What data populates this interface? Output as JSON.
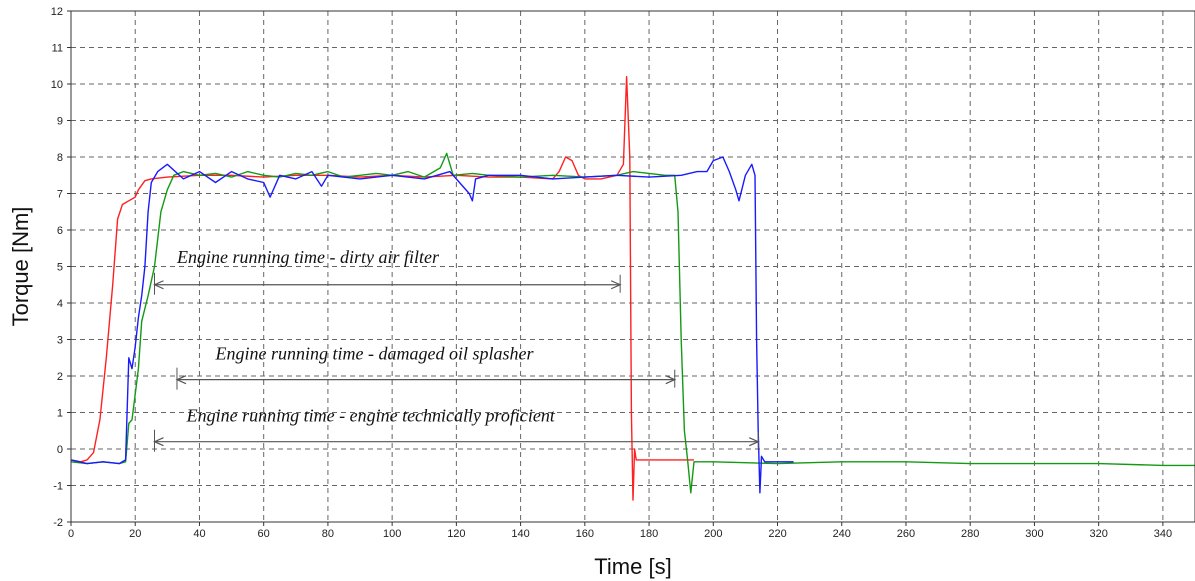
{
  "chart_data": {
    "type": "line",
    "xlabel": "Time [s]",
    "ylabel": "Torque [Nm]",
    "xlim": [
      0,
      350
    ],
    "ylim": [
      -2,
      12
    ],
    "xticks": [
      0,
      20,
      40,
      60,
      80,
      100,
      120,
      140,
      160,
      180,
      200,
      220,
      240,
      260,
      280,
      300,
      320,
      340
    ],
    "yticks": [
      -2,
      -1,
      0,
      1,
      2,
      3,
      4,
      5,
      6,
      7,
      8,
      9,
      10,
      11,
      12
    ],
    "grid": true,
    "colors": {
      "red": "#ff2020",
      "green": "#139a13",
      "blue": "#1a1aff"
    },
    "series": [
      {
        "color": "#ff2020",
        "points": [
          [
            0,
            -0.3
          ],
          [
            3,
            -0.35
          ],
          [
            5,
            -0.3
          ],
          [
            7,
            -0.1
          ],
          [
            9,
            0.8
          ],
          [
            11,
            2.5
          ],
          [
            13,
            4.5
          ],
          [
            14.5,
            6.3
          ],
          [
            16,
            6.7
          ],
          [
            18,
            6.8
          ],
          [
            20,
            6.9
          ],
          [
            21,
            7.1
          ],
          [
            23,
            7.35
          ],
          [
            25,
            7.4
          ],
          [
            30,
            7.45
          ],
          [
            40,
            7.5
          ],
          [
            50,
            7.5
          ],
          [
            60,
            7.45
          ],
          [
            70,
            7.5
          ],
          [
            80,
            7.5
          ],
          [
            90,
            7.45
          ],
          [
            100,
            7.5
          ],
          [
            110,
            7.45
          ],
          [
            120,
            7.5
          ],
          [
            130,
            7.45
          ],
          [
            140,
            7.45
          ],
          [
            150,
            7.4
          ],
          [
            152,
            7.6
          ],
          [
            154,
            8.0
          ],
          [
            156,
            7.9
          ],
          [
            158,
            7.5
          ],
          [
            160,
            7.4
          ],
          [
            165,
            7.4
          ],
          [
            170,
            7.5
          ],
          [
            172,
            7.8
          ],
          [
            173,
            10.2
          ],
          [
            174,
            8.0
          ],
          [
            174.5,
            1.0
          ],
          [
            175,
            -1.4
          ],
          [
            175.5,
            0
          ],
          [
            176,
            -0.3
          ],
          [
            180,
            -0.3
          ],
          [
            190,
            -0.3
          ],
          [
            194,
            -0.3
          ]
        ]
      },
      {
        "color": "#139a13",
        "points": [
          [
            0,
            -0.35
          ],
          [
            5,
            -0.4
          ],
          [
            10,
            -0.35
          ],
          [
            15,
            -0.4
          ],
          [
            17,
            -0.35
          ],
          [
            18,
            0.7
          ],
          [
            19,
            0.8
          ],
          [
            20,
            1.5
          ],
          [
            21,
            2.2
          ],
          [
            22,
            3.5
          ],
          [
            24,
            4.2
          ],
          [
            26,
            5.0
          ],
          [
            28,
            6.5
          ],
          [
            30,
            7.1
          ],
          [
            32,
            7.5
          ],
          [
            35,
            7.6
          ],
          [
            40,
            7.5
          ],
          [
            45,
            7.55
          ],
          [
            50,
            7.45
          ],
          [
            55,
            7.6
          ],
          [
            60,
            7.5
          ],
          [
            65,
            7.45
          ],
          [
            70,
            7.55
          ],
          [
            75,
            7.5
          ],
          [
            80,
            7.6
          ],
          [
            85,
            7.45
          ],
          [
            90,
            7.5
          ],
          [
            95,
            7.55
          ],
          [
            100,
            7.5
          ],
          [
            105,
            7.6
          ],
          [
            110,
            7.45
          ],
          [
            115,
            7.7
          ],
          [
            117,
            8.1
          ],
          [
            119,
            7.5
          ],
          [
            125,
            7.55
          ],
          [
            130,
            7.5
          ],
          [
            140,
            7.45
          ],
          [
            150,
            7.5
          ],
          [
            160,
            7.45
          ],
          [
            170,
            7.5
          ],
          [
            175,
            7.6
          ],
          [
            180,
            7.55
          ],
          [
            185,
            7.5
          ],
          [
            188,
            7.5
          ],
          [
            189,
            6.5
          ],
          [
            190,
            3.0
          ],
          [
            191,
            0.5
          ],
          [
            192,
            -0.3
          ],
          [
            193,
            -1.2
          ],
          [
            194,
            -0.35
          ],
          [
            200,
            -0.35
          ],
          [
            220,
            -0.4
          ],
          [
            240,
            -0.35
          ],
          [
            260,
            -0.35
          ],
          [
            280,
            -0.4
          ],
          [
            300,
            -0.4
          ],
          [
            320,
            -0.4
          ],
          [
            340,
            -0.45
          ],
          [
            350,
            -0.45
          ]
        ]
      },
      {
        "color": "#1a1aff",
        "points": [
          [
            0,
            -0.3
          ],
          [
            5,
            -0.4
          ],
          [
            10,
            -0.35
          ],
          [
            15,
            -0.4
          ],
          [
            17,
            -0.3
          ],
          [
            18,
            2.5
          ],
          [
            19,
            2.2
          ],
          [
            20,
            2.8
          ],
          [
            21,
            3.6
          ],
          [
            22,
            4.2
          ],
          [
            23,
            5.0
          ],
          [
            24,
            6.5
          ],
          [
            25,
            7.3
          ],
          [
            27,
            7.6
          ],
          [
            30,
            7.8
          ],
          [
            35,
            7.4
          ],
          [
            40,
            7.6
          ],
          [
            45,
            7.3
          ],
          [
            50,
            7.6
          ],
          [
            55,
            7.4
          ],
          [
            60,
            7.3
          ],
          [
            62,
            6.9
          ],
          [
            65,
            7.5
          ],
          [
            70,
            7.4
          ],
          [
            75,
            7.6
          ],
          [
            78,
            7.2
          ],
          [
            80,
            7.5
          ],
          [
            90,
            7.4
          ],
          [
            100,
            7.5
          ],
          [
            110,
            7.4
          ],
          [
            118,
            7.6
          ],
          [
            124,
            7.0
          ],
          [
            125,
            6.8
          ],
          [
            126,
            7.4
          ],
          [
            130,
            7.5
          ],
          [
            140,
            7.5
          ],
          [
            150,
            7.4
          ],
          [
            160,
            7.45
          ],
          [
            170,
            7.5
          ],
          [
            180,
            7.45
          ],
          [
            190,
            7.5
          ],
          [
            195,
            7.6
          ],
          [
            198,
            7.6
          ],
          [
            200,
            7.9
          ],
          [
            203,
            8.0
          ],
          [
            205,
            7.6
          ],
          [
            207,
            7.1
          ],
          [
            208,
            6.8
          ],
          [
            210,
            7.5
          ],
          [
            212,
            7.8
          ],
          [
            213,
            7.5
          ],
          [
            213.5,
            3.0
          ],
          [
            214,
            0.5
          ],
          [
            214.5,
            -1.2
          ],
          [
            215,
            -0.2
          ],
          [
            216,
            -0.35
          ],
          [
            220,
            -0.35
          ],
          [
            225,
            -0.35
          ]
        ]
      }
    ],
    "annotations": [
      {
        "text": "Engine running time - dirty air filter",
        "x1": 26,
        "x2": 171,
        "y": 4.5,
        "tx": 33,
        "ty": 5.1
      },
      {
        "text": "Engine running time -  damaged oil splasher",
        "x1": 33,
        "x2": 188,
        "y": 1.9,
        "tx": 45,
        "ty": 2.45
      },
      {
        "text": "Engine running time -  engine technically proficient",
        "x1": 26,
        "x2": 214,
        "y": 0.2,
        "tx": 36,
        "ty": 0.75
      }
    ]
  }
}
